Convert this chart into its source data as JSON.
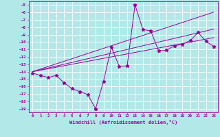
{
  "x_values": [
    0,
    1,
    2,
    3,
    4,
    5,
    6,
    7,
    8,
    9,
    10,
    11,
    12,
    13,
    14,
    15,
    16,
    17,
    18,
    19,
    20,
    21,
    22,
    23
  ],
  "y_main": [
    -14.2,
    -14.5,
    -14.8,
    -14.5,
    -15.5,
    -16.3,
    -16.7,
    -17.1,
    -19.0,
    -15.3,
    -10.7,
    -13.3,
    -13.2,
    -5.0,
    -8.3,
    -8.5,
    -11.2,
    -11.1,
    -10.5,
    -10.3,
    -9.8,
    -8.7,
    -9.9,
    -10.6
  ],
  "y_reg1": [
    -14.0,
    -13.8,
    -13.6,
    -13.4,
    -13.2,
    -13.0,
    -12.8,
    -12.6,
    -12.4,
    -12.2,
    -12.0,
    -11.8,
    -11.6,
    -11.4,
    -11.2,
    -11.0,
    -10.8,
    -10.6,
    -10.4,
    -10.2,
    -10.0,
    -9.8,
    -9.6,
    -9.4
  ],
  "y_reg2": [
    -14.0,
    -13.75,
    -13.5,
    -13.25,
    -13.0,
    -12.75,
    -12.5,
    -12.25,
    -12.0,
    -11.75,
    -11.5,
    -11.25,
    -11.0,
    -10.75,
    -10.5,
    -10.25,
    -10.0,
    -9.75,
    -9.5,
    -9.25,
    -9.0,
    -8.75,
    -8.5,
    -8.25
  ],
  "y_reg3": [
    -14.0,
    -13.65,
    -13.3,
    -12.95,
    -12.6,
    -12.25,
    -11.9,
    -11.55,
    -11.2,
    -10.85,
    -10.5,
    -10.15,
    -9.8,
    -9.45,
    -9.1,
    -8.75,
    -8.4,
    -8.05,
    -7.7,
    -7.35,
    -7.0,
    -6.65,
    -6.3,
    -5.95
  ],
  "line_color": "#990099",
  "bg_color": "#b2e8e8",
  "grid_color": "#ffffff",
  "xlabel": "Windchill (Refroidissement éolien,°C)",
  "ylim": [
    -19.5,
    -4.5
  ],
  "xlim": [
    -0.5,
    23.5
  ],
  "yticks": [
    -5,
    -6,
    -7,
    -8,
    -9,
    -10,
    -11,
    -12,
    -13,
    -14,
    -15,
    -16,
    -17,
    -18,
    -19
  ],
  "xticks": [
    0,
    1,
    2,
    3,
    4,
    5,
    6,
    7,
    8,
    9,
    10,
    11,
    12,
    13,
    14,
    15,
    16,
    17,
    18,
    19,
    20,
    21,
    22,
    23
  ]
}
